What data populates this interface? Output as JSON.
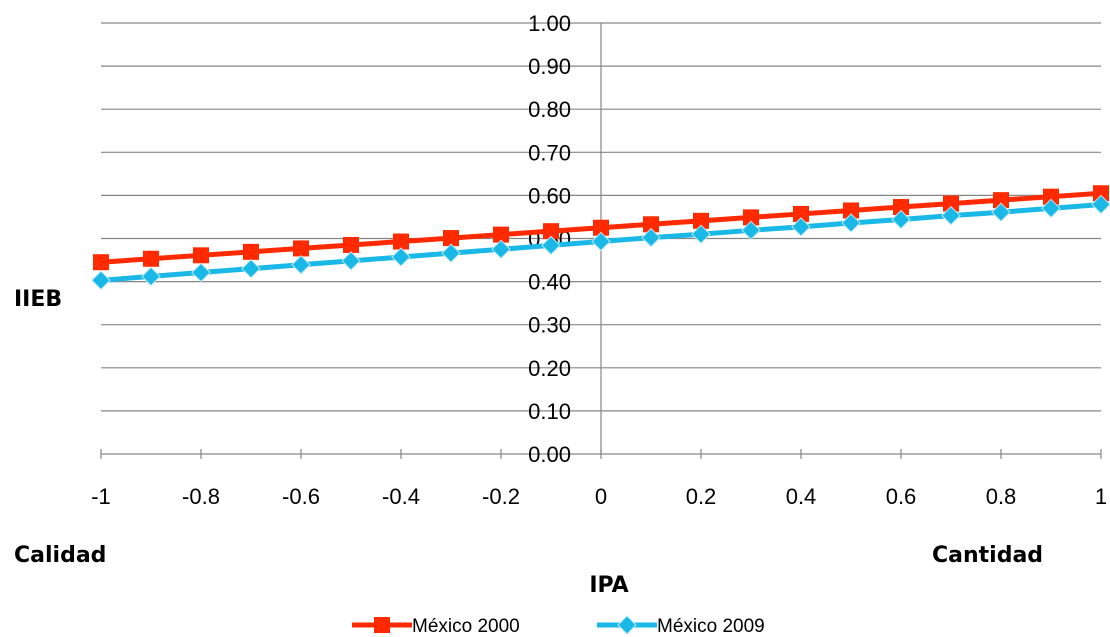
{
  "chart_data": {
    "type": "line",
    "x": [
      -1,
      -0.9,
      -0.8,
      -0.7,
      -0.6,
      -0.5,
      -0.4,
      -0.3,
      -0.2,
      -0.1,
      0,
      0.1,
      0.2,
      0.3,
      0.4,
      0.5,
      0.6,
      0.7,
      0.8,
      0.9,
      1
    ],
    "x_tick_labels": [
      "-1",
      "-0.8",
      "-0.6",
      "-0.4",
      "-0.2",
      "0",
      "0.2",
      "0.4",
      "0.6",
      "0.8",
      "1"
    ],
    "x_ticks": [
      -1,
      -0.8,
      -0.6,
      -0.4,
      -0.2,
      0,
      0.2,
      0.4,
      0.6,
      0.8,
      1
    ],
    "xlim": [
      -1,
      1
    ],
    "y_tick_labels": [
      "0.00",
      "0.10",
      "0.20",
      "0.30",
      "0.40",
      "0.50",
      "0.60",
      "0.70",
      "0.80",
      "0.90",
      "1.00"
    ],
    "y_ticks": [
      0,
      0.1,
      0.2,
      0.3,
      0.4,
      0.5,
      0.6,
      0.7,
      0.8,
      0.9,
      1.0
    ],
    "ylim": [
      0,
      1
    ],
    "xlabel": "IPA",
    "ylabel": "IIEB",
    "annotations": {
      "left": "Calidad",
      "right": "Cantidad"
    },
    "grid": "horizontal",
    "legend_position": "bottom",
    "series": [
      {
        "name": "México 2000",
        "color": "#ff2a00",
        "marker": "square",
        "values": [
          0.445,
          0.453,
          0.461,
          0.469,
          0.477,
          0.485,
          0.493,
          0.501,
          0.509,
          0.517,
          0.525,
          0.533,
          0.541,
          0.549,
          0.557,
          0.565,
          0.573,
          0.581,
          0.589,
          0.597,
          0.605
        ]
      },
      {
        "name": "México 2009",
        "color": "#1ab8e6",
        "marker": "diamond",
        "values": [
          0.403,
          0.412,
          0.421,
          0.43,
          0.439,
          0.448,
          0.457,
          0.466,
          0.475,
          0.484,
          0.493,
          0.502,
          0.51,
          0.519,
          0.527,
          0.536,
          0.544,
          0.553,
          0.561,
          0.57,
          0.579
        ]
      }
    ]
  }
}
